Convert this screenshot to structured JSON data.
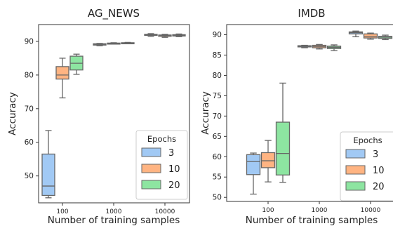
{
  "chart_data": [
    {
      "type": "box",
      "title": "AG_NEWS",
      "xlabel": "Number of training samples",
      "ylabel": "Accuracy",
      "categories": [
        "100",
        "1000",
        "10000"
      ],
      "yticks": [
        50,
        60,
        70,
        80,
        90
      ],
      "ylim": [
        42,
        95
      ],
      "legend": {
        "title": "Epochs",
        "placement": "lower-right"
      },
      "series": [
        {
          "name": "3",
          "color": "#a1c9f4",
          "boxes": [
            {
              "category": "100",
              "whisker_low": 43.5,
              "q1": 44.2,
              "median": 47.0,
              "q3": 56.5,
              "whisker_high": 63.5
            },
            {
              "category": "1000",
              "whisker_low": 88.7,
              "q1": 88.9,
              "median": 89.1,
              "q3": 89.3,
              "whisker_high": 89.4
            },
            {
              "category": "10000",
              "whisker_low": 91.5,
              "q1": 91.8,
              "median": 92.0,
              "q3": 92.1,
              "whisker_high": 92.3
            }
          ]
        },
        {
          "name": "10",
          "color": "#ffb482",
          "boxes": [
            {
              "category": "100",
              "whisker_low": 73.2,
              "q1": 78.8,
              "median": 80.0,
              "q3": 82.5,
              "whisker_high": 85.0
            },
            {
              "category": "1000",
              "whisker_low": 89.2,
              "q1": 89.3,
              "median": 89.4,
              "q3": 89.5,
              "whisker_high": 89.6
            },
            {
              "category": "10000",
              "whisker_low": 91.2,
              "q1": 91.5,
              "median": 91.8,
              "q3": 91.9,
              "whisker_high": 92.1
            }
          ]
        },
        {
          "name": "20",
          "color": "#8de5a1",
          "boxes": [
            {
              "category": "100",
              "whisker_low": 80.2,
              "q1": 81.5,
              "median": 83.5,
              "q3": 85.6,
              "whisker_high": 86.2
            },
            {
              "category": "1000",
              "whisker_low": 89.3,
              "q1": 89.4,
              "median": 89.5,
              "q3": 89.6,
              "whisker_high": 89.7
            },
            {
              "category": "10000",
              "whisker_low": 91.4,
              "q1": 91.6,
              "median": 91.8,
              "q3": 92.0,
              "whisker_high": 92.2
            }
          ]
        }
      ]
    },
    {
      "type": "box",
      "title": "IMDB",
      "xlabel": "Number of training samples",
      "ylabel": "Accuracy",
      "categories": [
        "100",
        "1000",
        "10000"
      ],
      "yticks": [
        50,
        55,
        60,
        65,
        70,
        75,
        80,
        85,
        90
      ],
      "ylim": [
        49,
        92.5
      ],
      "legend": {
        "title": "Epochs",
        "placement": "lower-right"
      },
      "series": [
        {
          "name": "3",
          "color": "#a1c9f4",
          "boxes": [
            {
              "category": "100",
              "whisker_low": 50.8,
              "q1": 55.6,
              "median": 58.8,
              "q3": 60.5,
              "whisker_high": 60.9
            },
            {
              "category": "1000",
              "whisker_low": 86.8,
              "q1": 87.0,
              "median": 87.2,
              "q3": 87.3,
              "whisker_high": 87.4
            },
            {
              "category": "10000",
              "whisker_low": 89.5,
              "q1": 90.2,
              "median": 90.5,
              "q3": 90.7,
              "whisker_high": 90.9
            }
          ]
        },
        {
          "name": "10",
          "color": "#ffb482",
          "boxes": [
            {
              "category": "100",
              "whisker_low": 53.8,
              "q1": 57.3,
              "median": 59.0,
              "q3": 61.0,
              "whisker_high": 64.0
            },
            {
              "category": "1000",
              "whisker_low": 86.5,
              "q1": 86.8,
              "median": 87.1,
              "q3": 87.4,
              "whisker_high": 87.6
            },
            {
              "category": "10000",
              "whisker_low": 88.9,
              "q1": 89.2,
              "median": 89.5,
              "q3": 90.2,
              "whisker_high": 90.4
            }
          ]
        },
        {
          "name": "20",
          "color": "#8de5a1",
          "boxes": [
            {
              "category": "100",
              "whisker_low": 53.7,
              "q1": 55.5,
              "median": 60.8,
              "q3": 68.5,
              "whisker_high": 78.1
            },
            {
              "category": "1000",
              "whisker_low": 86.1,
              "q1": 86.6,
              "median": 86.9,
              "q3": 87.2,
              "whisker_high": 87.5
            },
            {
              "category": "10000",
              "whisker_low": 88.8,
              "q1": 89.1,
              "median": 89.4,
              "q3": 89.6,
              "whisker_high": 89.9
            }
          ]
        }
      ]
    }
  ]
}
